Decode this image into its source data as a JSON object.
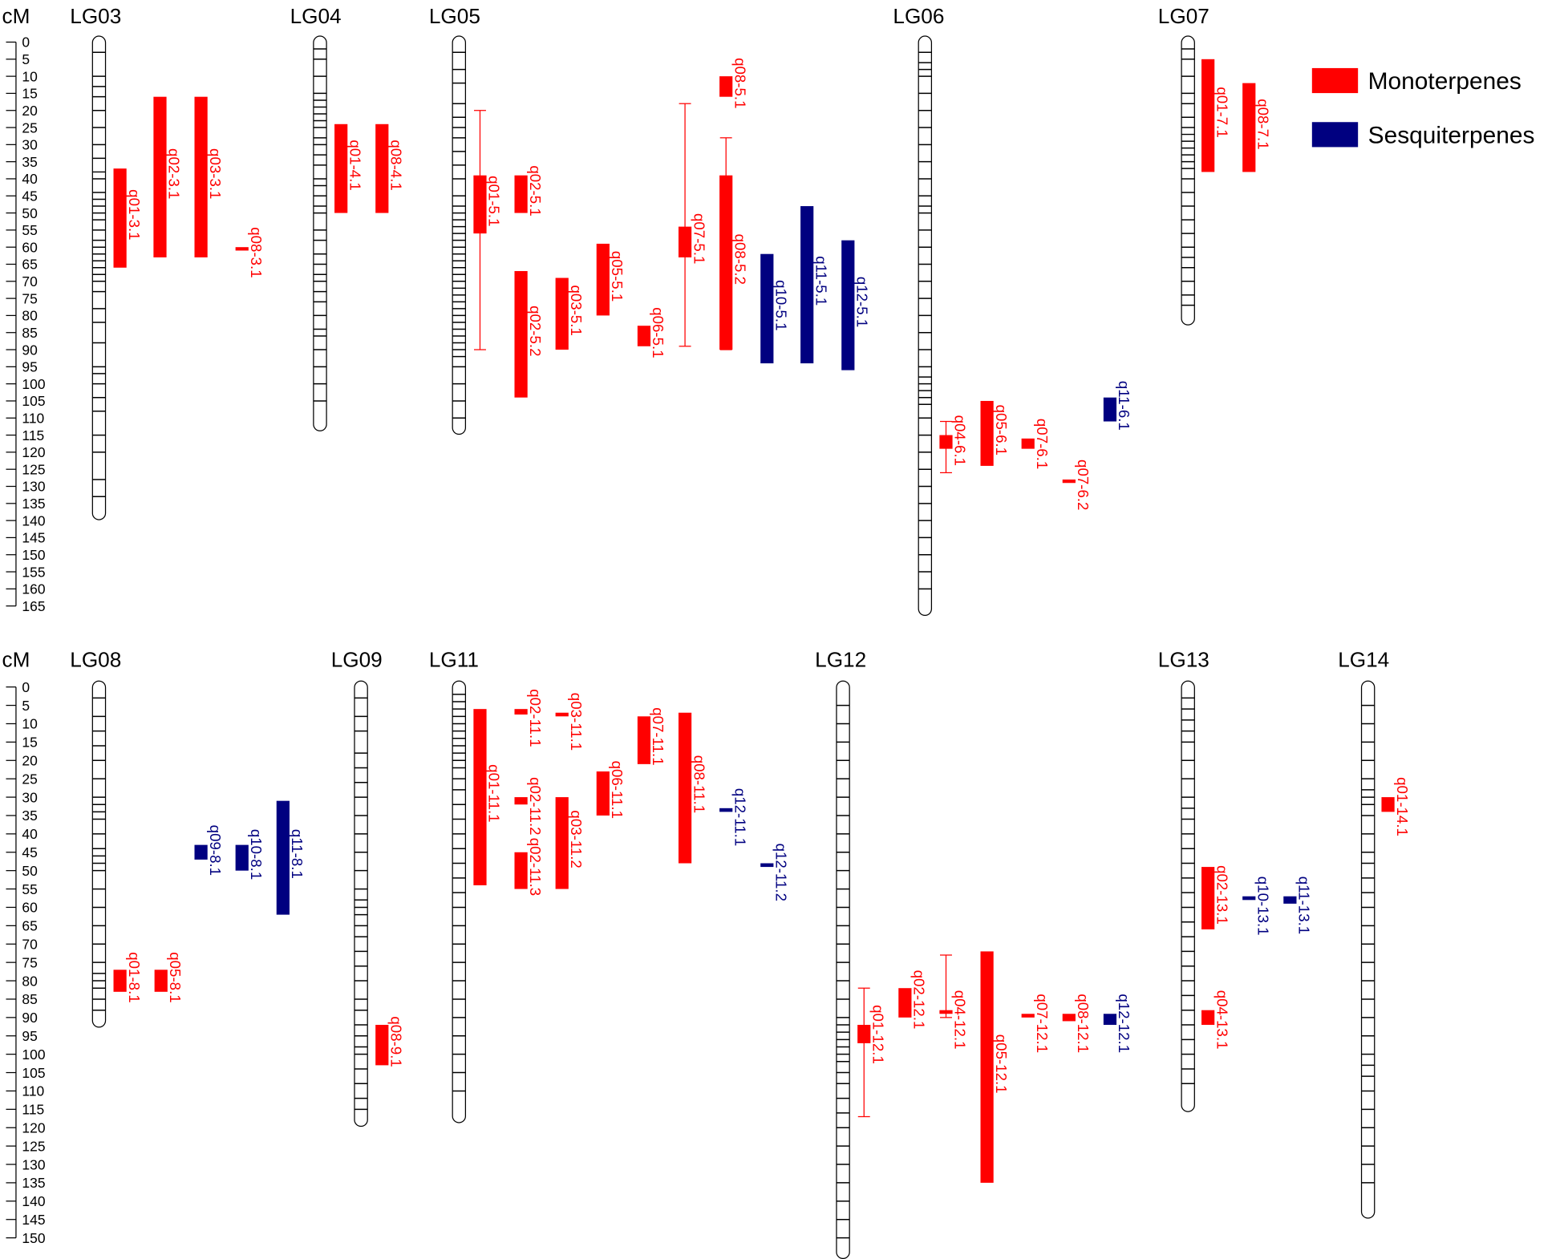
{
  "legend": [
    {
      "name": "Monoterpenes",
      "color": "#ff0000"
    },
    {
      "name": "Sesquiterpenes",
      "color": "#000080"
    }
  ],
  "panels": [
    {
      "axis_label": "cM",
      "yticks": [
        0,
        5,
        10,
        15,
        20,
        25,
        30,
        35,
        40,
        45,
        50,
        55,
        60,
        65,
        70,
        75,
        80,
        85,
        90,
        95,
        100,
        105,
        110,
        115,
        120,
        125,
        130,
        135,
        140,
        145,
        150,
        155,
        160,
        165
      ],
      "groups": [
        {
          "name": "LG03",
          "length": 138,
          "markers": [
            3,
            10,
            13,
            16,
            20,
            25,
            30,
            34,
            38,
            40,
            44,
            46,
            48,
            50,
            52,
            55,
            58,
            60,
            62,
            64,
            66,
            68,
            70,
            73,
            78,
            82,
            88,
            95,
            97,
            100,
            104,
            108,
            115,
            120,
            128,
            133
          ],
          "qtls": [
            {
              "name": "q01-3.1",
              "color": "#ff0000",
              "start": 37,
              "end": 66
            },
            {
              "name": "q02-3.1",
              "color": "#ff0000",
              "start": 16,
              "end": 63
            },
            {
              "name": "q03-3.1",
              "color": "#ff0000",
              "start": 16,
              "end": 63
            },
            {
              "name": "q08-3.1",
              "color": "#ff0000",
              "start": 60,
              "end": 61
            }
          ]
        },
        {
          "name": "LG04",
          "length": 112,
          "markers": [
            2,
            5,
            10,
            15,
            17,
            19,
            21,
            23,
            25,
            28,
            30,
            33,
            36,
            40,
            42,
            45,
            48,
            50,
            55,
            58,
            62,
            65,
            68,
            70,
            73,
            76,
            80,
            84,
            86,
            90,
            95,
            100,
            105
          ],
          "qtls": [
            {
              "name": "q01-4.1",
              "color": "#ff0000",
              "start": 24,
              "end": 50
            },
            {
              "name": "q08-4.1",
              "color": "#ff0000",
              "start": 24,
              "end": 50
            }
          ]
        },
        {
          "name": "LG05",
          "length": 113,
          "markers": [
            3,
            8,
            12,
            18,
            22,
            25,
            28,
            32,
            36,
            40,
            45,
            48,
            50,
            52,
            54,
            56,
            58,
            60,
            62,
            64,
            66,
            68,
            70,
            72,
            74,
            76,
            78,
            80,
            82,
            84,
            86,
            88,
            90,
            92,
            95,
            100,
            105,
            110
          ],
          "qtls": [
            {
              "name": "q01-5.1",
              "color": "#ff0000",
              "start": 39,
              "end": 56,
              "ci": [
                20,
                90
              ]
            },
            {
              "name": "q02-5.1",
              "color": "#ff0000",
              "start": 39,
              "end": 50
            },
            {
              "name": "q02-5.2",
              "color": "#ff0000",
              "start": 67,
              "end": 104
            },
            {
              "name": "q03-5.1",
              "color": "#ff0000",
              "start": 69,
              "end": 90
            },
            {
              "name": "q05-5.1",
              "color": "#ff0000",
              "start": 59,
              "end": 80
            },
            {
              "name": "q06-5.1",
              "color": "#ff0000",
              "start": 83,
              "end": 89
            },
            {
              "name": "q07-5.1",
              "color": "#ff0000",
              "start": 54,
              "end": 63,
              "ci": [
                18,
                89
              ]
            },
            {
              "name": "q08-5.1",
              "color": "#ff0000",
              "start": 10,
              "end": 16
            },
            {
              "name": "q08-5.2",
              "color": "#ff0000",
              "start": 39,
              "end": 90,
              "ci": [
                28,
                90
              ]
            },
            {
              "name": "q10-5.1",
              "color": "#000080",
              "start": 62,
              "end": 94
            },
            {
              "name": "q11-5.1",
              "color": "#000080",
              "start": 48,
              "end": 94
            },
            {
              "name": "q12-5.1",
              "color": "#000080",
              "start": 58,
              "end": 96
            }
          ]
        },
        {
          "name": "LG06",
          "length": 166,
          "markers": [
            3,
            6,
            8,
            10,
            15,
            20,
            25,
            30,
            35,
            40,
            45,
            48,
            50,
            55,
            60,
            65,
            70,
            75,
            80,
            85,
            90,
            95,
            98,
            100,
            102,
            104,
            106,
            110,
            115,
            120,
            125,
            130,
            135,
            140,
            145,
            150,
            155,
            160
          ],
          "qtls": [
            {
              "name": "q04-6.1",
              "color": "#ff0000",
              "start": 115,
              "end": 119,
              "ci": [
                111,
                126
              ]
            },
            {
              "name": "q05-6.1",
              "color": "#ff0000",
              "start": 105,
              "end": 124
            },
            {
              "name": "q07-6.1",
              "color": "#ff0000",
              "start": 116,
              "end": 119
            },
            {
              "name": "q07-6.2",
              "color": "#ff0000",
              "start": 128,
              "end": 129
            },
            {
              "name": "q11-6.1",
              "color": "#000080",
              "start": 104,
              "end": 111
            }
          ]
        },
        {
          "name": "LG07",
          "length": 81,
          "markers": [
            2,
            5,
            10,
            15,
            18,
            22,
            25,
            27,
            29,
            31,
            33,
            35,
            37,
            40,
            44,
            48,
            52,
            56,
            60,
            63,
            66,
            70,
            74,
            77
          ],
          "qtls": [
            {
              "name": "q01-7.1",
              "color": "#ff0000",
              "start": 5,
              "end": 38
            },
            {
              "name": "q08-7.1",
              "color": "#ff0000",
              "start": 12,
              "end": 38
            }
          ]
        }
      ]
    },
    {
      "axis_label": "cM",
      "yticks": [
        0,
        5,
        10,
        15,
        20,
        25,
        30,
        35,
        40,
        45,
        50,
        55,
        60,
        65,
        70,
        75,
        80,
        85,
        90,
        95,
        100,
        105,
        110,
        115,
        120,
        125,
        130,
        135,
        140,
        145,
        150
      ],
      "groups": [
        {
          "name": "LG08",
          "length": 91,
          "markers": [
            3,
            8,
            12,
            16,
            20,
            25,
            30,
            32,
            34,
            36,
            40,
            44,
            46,
            48,
            50,
            55,
            60,
            65,
            70,
            75,
            78,
            80,
            82,
            85,
            88
          ],
          "qtls": [
            {
              "name": "q01-8.1",
              "color": "#ff0000",
              "start": 77,
              "end": 83
            },
            {
              "name": "q05-8.1",
              "color": "#ff0000",
              "start": 77,
              "end": 83
            },
            {
              "name": "q09-8.1",
              "color": "#000080",
              "start": 43,
              "end": 47
            },
            {
              "name": "q10-8.1",
              "color": "#000080",
              "start": 43,
              "end": 50
            },
            {
              "name": "q11-8.1",
              "color": "#000080",
              "start": 31,
              "end": 62
            }
          ]
        },
        {
          "name": "LG09",
          "length": 118,
          "markers": [
            3,
            8,
            12,
            18,
            22,
            26,
            30,
            35,
            40,
            45,
            50,
            55,
            58,
            60,
            62,
            65,
            68,
            72,
            76,
            80,
            85,
            88,
            92,
            95,
            98,
            100,
            104,
            108,
            112,
            115
          ],
          "qtls": [
            {
              "name": "q08-9.1",
              "color": "#ff0000",
              "start": 92,
              "end": 103
            }
          ]
        },
        {
          "name": "LG11",
          "length": 117,
          "markers": [
            2,
            4,
            6,
            8,
            10,
            12,
            14,
            16,
            18,
            20,
            22,
            25,
            28,
            32,
            36,
            40,
            44,
            48,
            52,
            56,
            60,
            65,
            70,
            75,
            80,
            85,
            90,
            95,
            100,
            105,
            110
          ],
          "qtls": [
            {
              "name": "q01-11.1",
              "color": "#ff0000",
              "start": 6,
              "end": 54
            },
            {
              "name": "q02-11.1",
              "color": "#ff0000",
              "start": 6,
              "end": 7.5
            },
            {
              "name": "q02-11.2",
              "color": "#ff0000",
              "start": 30,
              "end": 32
            },
            {
              "name": "q02-11.3",
              "color": "#ff0000",
              "start": 45,
              "end": 55
            },
            {
              "name": "q03-11.1",
              "color": "#ff0000",
              "start": 7,
              "end": 8
            },
            {
              "name": "q03-11.2",
              "color": "#ff0000",
              "start": 30,
              "end": 55
            },
            {
              "name": "q06-11.1",
              "color": "#ff0000",
              "start": 23,
              "end": 35
            },
            {
              "name": "q07-11.1",
              "color": "#ff0000",
              "start": 8,
              "end": 21
            },
            {
              "name": "q08-11.1",
              "color": "#ff0000",
              "start": 7,
              "end": 48
            },
            {
              "name": "q12-11.1",
              "color": "#000080",
              "start": 33,
              "end": 34
            },
            {
              "name": "q12-11.2",
              "color": "#000080",
              "start": 48,
              "end": 49
            }
          ]
        },
        {
          "name": "LG12",
          "length": 154,
          "markers": [
            5,
            10,
            15,
            20,
            25,
            30,
            35,
            40,
            45,
            50,
            55,
            60,
            65,
            70,
            75,
            80,
            85,
            90,
            92,
            94,
            96,
            98,
            100,
            102,
            105,
            108,
            112,
            116,
            120,
            125,
            130,
            135,
            140,
            145,
            150
          ],
          "qtls": [
            {
              "name": "q01-12.1",
              "color": "#ff0000",
              "start": 92,
              "end": 97,
              "ci": [
                82,
                117
              ]
            },
            {
              "name": "q02-12.1",
              "color": "#ff0000",
              "start": 82,
              "end": 90
            },
            {
              "name": "q04-12.1",
              "color": "#ff0000",
              "start": 88,
              "end": 89,
              "ci": [
                73,
                90
              ]
            },
            {
              "name": "q05-12.1",
              "color": "#ff0000",
              "start": 72,
              "end": 135
            },
            {
              "name": "q07-12.1",
              "color": "#ff0000",
              "start": 89,
              "end": 90
            },
            {
              "name": "q08-12.1",
              "color": "#ff0000",
              "start": 89,
              "end": 91
            },
            {
              "name": "q12-12.1",
              "color": "#000080",
              "start": 89,
              "end": 92
            }
          ]
        },
        {
          "name": "LG13",
          "length": 114,
          "markers": [
            3,
            6,
            9,
            12,
            15,
            20,
            25,
            30,
            33,
            36,
            40,
            44,
            48,
            52,
            56,
            60,
            64,
            68,
            72,
            76,
            80,
            84,
            88,
            92,
            96,
            100,
            104,
            108
          ],
          "qtls": [
            {
              "name": "q02-13.1",
              "color": "#ff0000",
              "start": 49,
              "end": 66
            },
            {
              "name": "q04-13.1",
              "color": "#ff0000",
              "start": 88,
              "end": 92
            },
            {
              "name": "q10-13.1",
              "color": "#000080",
              "start": 57,
              "end": 58
            },
            {
              "name": "q11-13.1",
              "color": "#000080",
              "start": 57,
              "end": 59
            }
          ]
        },
        {
          "name": "LG14",
          "length": 143,
          "markers": [
            5,
            10,
            15,
            20,
            25,
            28,
            30,
            32,
            35,
            40,
            45,
            48,
            52,
            56,
            60,
            65,
            70,
            75,
            80,
            85,
            90,
            95,
            100,
            103,
            106,
            110,
            115,
            120,
            125,
            130,
            135
          ],
          "qtls": [
            {
              "name": "q01-14.1",
              "color": "#ff0000",
              "start": 30,
              "end": 34
            }
          ]
        }
      ]
    }
  ]
}
